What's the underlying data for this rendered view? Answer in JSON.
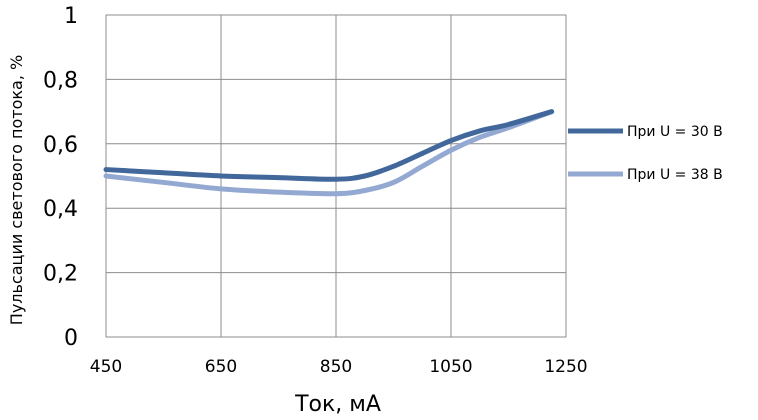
{
  "chart_data": {
    "type": "line",
    "xlabel": "Ток, мА",
    "ylabel": "Пульсации светового потока, %",
    "xlim": [
      450,
      1250
    ],
    "ylim": [
      0,
      1
    ],
    "x_ticks": [
      450,
      650,
      850,
      1050,
      1250
    ],
    "x_tick_labels": [
      "450",
      "650",
      "850",
      "1050",
      "1250"
    ],
    "y_ticks": [
      0,
      0.2,
      0.4,
      0.6,
      0.8,
      1
    ],
    "y_tick_labels": [
      "0",
      "0,2",
      "0,4",
      "0,6",
      "0,8",
      "1"
    ],
    "grid": true,
    "legend_position": "right",
    "series": [
      {
        "name": "При U = 30 В",
        "color": "#41679b",
        "x": [
          450,
          550,
          650,
          750,
          850,
          900,
          950,
          1000,
          1050,
          1100,
          1150,
          1225
        ],
        "y": [
          0.52,
          0.51,
          0.5,
          0.495,
          0.49,
          0.5,
          0.53,
          0.57,
          0.61,
          0.64,
          0.66,
          0.7
        ]
      },
      {
        "name": "При U = 38 В",
        "color": "#93a9d2",
        "x": [
          450,
          550,
          650,
          750,
          850,
          900,
          950,
          1000,
          1050,
          1100,
          1150,
          1225
        ],
        "y": [
          0.5,
          0.48,
          0.46,
          0.45,
          0.445,
          0.455,
          0.48,
          0.53,
          0.58,
          0.62,
          0.65,
          0.7
        ]
      }
    ]
  }
}
